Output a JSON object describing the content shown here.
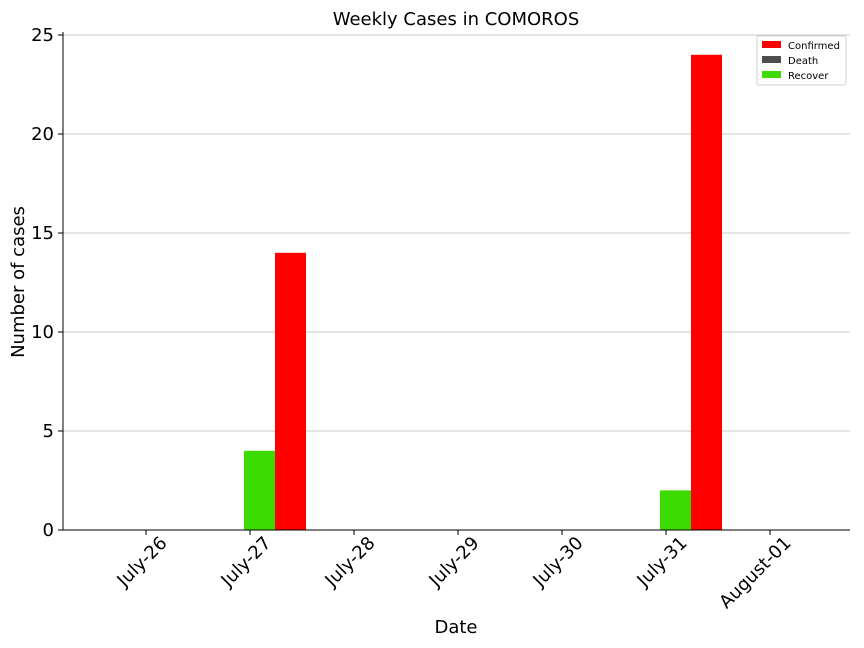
{
  "chart_data": {
    "type": "bar",
    "title": "Weekly Cases in COMOROS",
    "xlabel": "Date",
    "ylabel": "Number of cases",
    "categories": [
      "July-26",
      "July-27",
      "July-28",
      "July-29",
      "July-30",
      "July-31",
      "August-01"
    ],
    "series": [
      {
        "name": "Confirmed",
        "color": "#ff0000",
        "values": [
          0,
          14,
          0,
          0,
          0,
          24,
          0
        ]
      },
      {
        "name": "Death",
        "color": "#4d4d4d",
        "values": [
          0,
          0,
          0,
          0,
          0,
          0,
          0
        ]
      },
      {
        "name": "Recover",
        "color": "#3ddc00",
        "values": [
          0,
          4,
          0,
          0,
          0,
          2,
          0
        ]
      }
    ],
    "ylim": [
      0,
      25
    ],
    "yticks": [
      0,
      5,
      10,
      15,
      20,
      25
    ],
    "grid": "horizontal",
    "legend_position": "top-right"
  }
}
